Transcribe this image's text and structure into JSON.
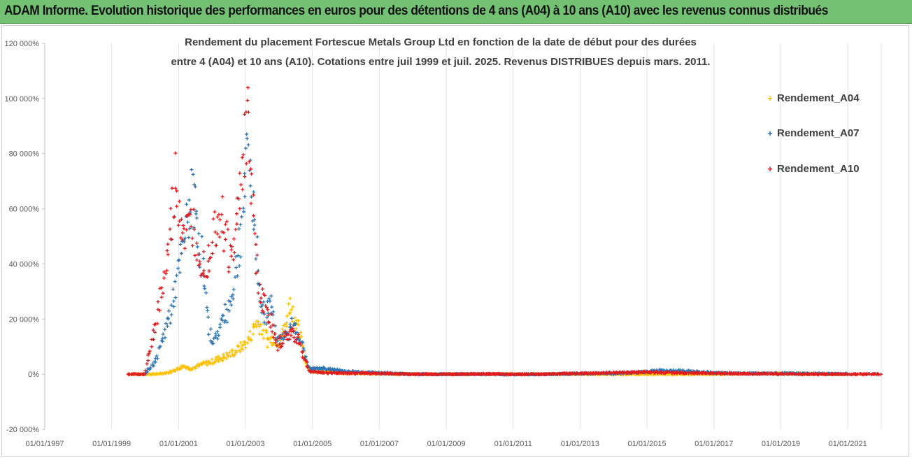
{
  "banner": {
    "text": "ADAM Informe. Evolution historique des performances en euros pour des détentions de 4 ans (A04) à 10 ans (A10) avec les revenus connus distribués"
  },
  "chart_data": {
    "type": "scatter",
    "title_line1": "Rendement du placement Fortescue Metals Group Ltd en fonction de la date de début pour des durées",
    "title_line2": "entre 4 (A04) et 10 ans (A10). Cotations entre juil 1999 et juil. 2025. Revenus DISTRIBUES depuis mars. 2011.",
    "x_tick_labels": [
      "01/01/1997",
      "01/01/1999",
      "01/01/2001",
      "01/01/2003",
      "01/01/2005",
      "01/01/2007",
      "01/01/2009",
      "01/01/2011",
      "01/01/2013",
      "01/01/2015",
      "01/01/2017",
      "01/01/2019",
      "01/01/2021"
    ],
    "y_tick_labels": [
      "120 000%",
      "100 000%",
      "80 000%",
      "60 000%",
      "40 000%",
      "20 000%",
      "0%",
      "-20 000%"
    ],
    "ylim": [
      -20000,
      120000
    ],
    "xlim": [
      "1997-01-01",
      "2022-01-01"
    ],
    "grid": "vertical",
    "legend_position": "right",
    "series": [
      {
        "name": "Rendement_A04",
        "color": "#FFC000",
        "points": [
          [
            "1999-07-01",
            0
          ],
          [
            "1999-10-01",
            0
          ],
          [
            "2000-01-01",
            0
          ],
          [
            "2000-04-01",
            0
          ],
          [
            "2000-07-01",
            200
          ],
          [
            "2000-10-01",
            800
          ],
          [
            "2001-01-01",
            2000
          ],
          [
            "2001-03-01",
            3000
          ],
          [
            "2001-05-01",
            2000
          ],
          [
            "2001-07-01",
            2500
          ],
          [
            "2001-09-01",
            3500
          ],
          [
            "2001-11-01",
            4000
          ],
          [
            "2002-01-01",
            4500
          ],
          [
            "2002-03-01",
            5500
          ],
          [
            "2002-05-01",
            6000
          ],
          [
            "2002-07-01",
            7000
          ],
          [
            "2002-09-01",
            8000
          ],
          [
            "2002-11-01",
            9500
          ],
          [
            "2003-01-01",
            11000
          ],
          [
            "2003-03-01",
            14000
          ],
          [
            "2003-05-01",
            19000
          ],
          [
            "2003-07-01",
            17000
          ],
          [
            "2003-09-01",
            12000
          ],
          [
            "2003-11-01",
            13000
          ],
          [
            "2004-01-01",
            12000
          ],
          [
            "2004-03-01",
            16000
          ],
          [
            "2004-05-01",
            26000
          ],
          [
            "2004-07-01",
            20000
          ],
          [
            "2004-09-01",
            12000
          ],
          [
            "2004-11-01",
            3000
          ],
          [
            "2005-01-01",
            1000
          ],
          [
            "2005-06-01",
            800
          ],
          [
            "2006-01-01",
            400
          ],
          [
            "2007-01-01",
            200
          ],
          [
            "2008-01-01",
            0
          ],
          [
            "2009-01-01",
            0
          ],
          [
            "2010-01-01",
            0
          ],
          [
            "2011-01-01",
            0
          ],
          [
            "2012-01-01",
            0
          ],
          [
            "2013-01-01",
            100
          ],
          [
            "2014-01-01",
            0
          ],
          [
            "2015-01-01",
            0
          ],
          [
            "2016-01-01",
            0
          ],
          [
            "2017-01-01",
            0
          ],
          [
            "2018-01-01",
            200
          ],
          [
            "2019-01-01",
            300
          ],
          [
            "2020-01-01",
            100
          ],
          [
            "2021-01-01",
            0
          ]
        ]
      },
      {
        "name": "Rendement_A07",
        "color": "#2E75B6",
        "points": [
          [
            "2000-01-01",
            0
          ],
          [
            "2000-05-01",
            5000
          ],
          [
            "2000-08-01",
            15000
          ],
          [
            "2000-10-01",
            22000
          ],
          [
            "2000-12-01",
            32000
          ],
          [
            "2001-02-01",
            42000
          ],
          [
            "2001-04-01",
            55000
          ],
          [
            "2001-06-01",
            65000
          ],
          [
            "2001-08-01",
            55000
          ],
          [
            "2001-10-01",
            35000
          ],
          [
            "2001-12-01",
            15000
          ],
          [
            "2002-02-01",
            12000
          ],
          [
            "2002-04-01",
            18000
          ],
          [
            "2002-06-01",
            22000
          ],
          [
            "2002-08-01",
            28000
          ],
          [
            "2002-10-01",
            40000
          ],
          [
            "2002-12-01",
            60000
          ],
          [
            "2003-02-01",
            80000
          ],
          [
            "2003-04-01",
            60000
          ],
          [
            "2003-06-01",
            30000
          ],
          [
            "2003-08-01",
            20000
          ],
          [
            "2003-10-01",
            28000
          ],
          [
            "2003-12-01",
            15000
          ],
          [
            "2004-02-01",
            12000
          ],
          [
            "2004-04-01",
            14000
          ],
          [
            "2004-06-01",
            18000
          ],
          [
            "2004-08-01",
            15000
          ],
          [
            "2004-10-01",
            8000
          ],
          [
            "2004-12-01",
            2000
          ],
          [
            "2005-06-01",
            2000
          ],
          [
            "2006-01-01",
            1000
          ],
          [
            "2007-01-01",
            500
          ],
          [
            "2008-01-01",
            0
          ],
          [
            "2009-01-01",
            0
          ],
          [
            "2010-01-01",
            0
          ],
          [
            "2011-01-01",
            -100
          ],
          [
            "2012-01-01",
            0
          ],
          [
            "2013-01-01",
            200
          ],
          [
            "2014-01-01",
            300
          ],
          [
            "2015-01-01",
            800
          ],
          [
            "2015-06-01",
            1500
          ],
          [
            "2016-01-01",
            1200
          ],
          [
            "2017-01-01",
            500
          ],
          [
            "2018-01-01",
            300
          ],
          [
            "2019-01-01",
            300
          ],
          [
            "2020-01-01",
            200
          ],
          [
            "2021-01-01",
            100
          ]
        ]
      },
      {
        "name": "Rendement_A10",
        "color": "#E31A1C",
        "points": [
          [
            "1999-07-01",
            0
          ],
          [
            "2000-01-01",
            0
          ],
          [
            "2000-05-01",
            20000
          ],
          [
            "2000-08-01",
            35000
          ],
          [
            "2000-10-01",
            50000
          ],
          [
            "2000-12-01",
            70000
          ],
          [
            "2001-02-01",
            55000
          ],
          [
            "2001-04-01",
            50000
          ],
          [
            "2001-06-01",
            55000
          ],
          [
            "2001-08-01",
            48000
          ],
          [
            "2001-10-01",
            40000
          ],
          [
            "2001-12-01",
            45000
          ],
          [
            "2002-02-01",
            55000
          ],
          [
            "2002-04-01",
            60000
          ],
          [
            "2002-06-01",
            50000
          ],
          [
            "2002-08-01",
            40000
          ],
          [
            "2002-10-01",
            55000
          ],
          [
            "2002-12-01",
            80000
          ],
          [
            "2003-02-01",
            90000
          ],
          [
            "2003-04-01",
            55000
          ],
          [
            "2003-06-01",
            30000
          ],
          [
            "2003-08-01",
            25000
          ],
          [
            "2003-10-01",
            20000
          ],
          [
            "2003-12-01",
            10000
          ],
          [
            "2004-02-01",
            12000
          ],
          [
            "2004-04-01",
            14000
          ],
          [
            "2004-06-01",
            15000
          ],
          [
            "2004-08-01",
            13000
          ],
          [
            "2004-10-01",
            6000
          ],
          [
            "2004-12-01",
            1000
          ],
          [
            "2005-06-01",
            500
          ],
          [
            "2006-01-01",
            400
          ],
          [
            "2007-01-01",
            300
          ],
          [
            "2008-01-01",
            0
          ],
          [
            "2009-01-01",
            0
          ],
          [
            "2010-01-01",
            100
          ],
          [
            "2011-01-01",
            0
          ],
          [
            "2012-01-01",
            0
          ],
          [
            "2013-01-01",
            300
          ],
          [
            "2014-01-01",
            500
          ],
          [
            "2015-01-01",
            800
          ],
          [
            "2016-01-01",
            500
          ],
          [
            "2017-01-01",
            300
          ],
          [
            "2018-01-01",
            200
          ],
          [
            "2019-01-01",
            100
          ],
          [
            "2020-01-01",
            0
          ],
          [
            "2021-01-01",
            0
          ],
          [
            "2022-01-01",
            0
          ]
        ]
      }
    ]
  }
}
